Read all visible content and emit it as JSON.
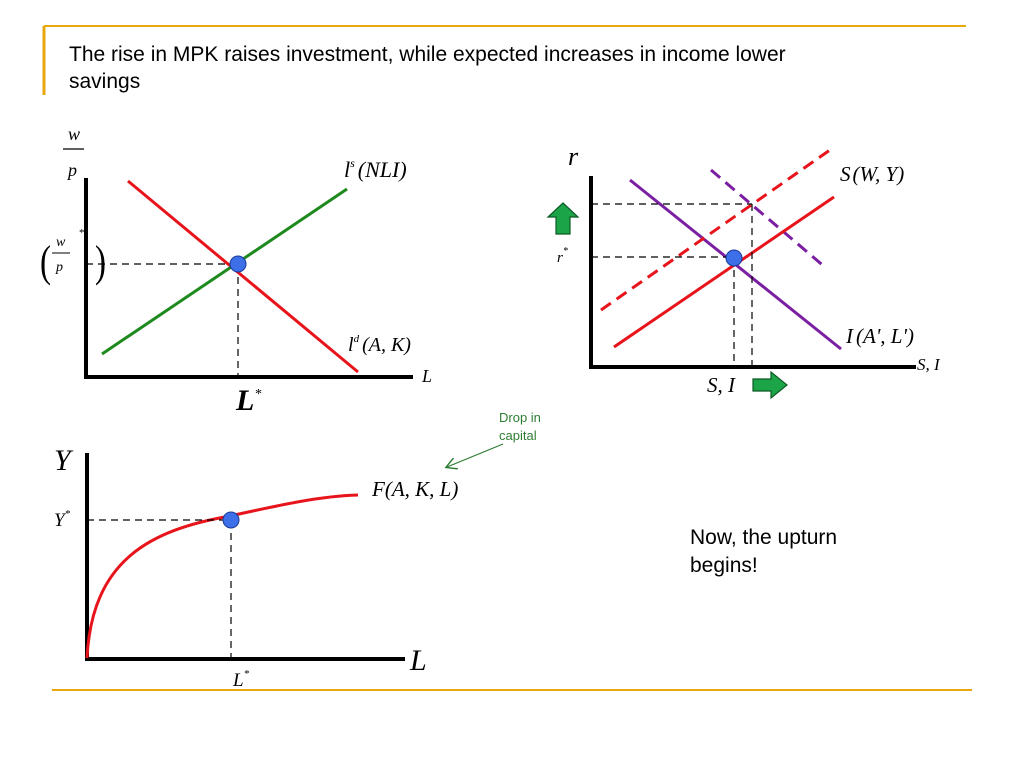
{
  "slide": {
    "title": "The rise in MPK raises investment, while expected increases in income lower savings",
    "note": "Now, the upturn begins!",
    "accent_color": "#E8A80C"
  },
  "labor_market": {
    "y_label_num": "w",
    "y_label_den": "p",
    "x_label": "L",
    "supply_label": "l",
    "supply_sup": "s",
    "supply_args": "(NLI)",
    "demand_label": "l",
    "demand_sup": "d",
    "demand_args": "(A, K)",
    "eq_wage_num": "w",
    "eq_wage_den": "p",
    "eq_star": "*",
    "eq_labor": "L",
    "supply_color": "#1E8A1E",
    "demand_color": "#E8141B",
    "point_color": "#3C6FE8"
  },
  "capital_market": {
    "y_label": "r",
    "x_label": "S, I",
    "saving_label": "S",
    "saving_args": "(W, Y)",
    "investment_label": "I",
    "investment_args": "(A', L')",
    "eq_rate": "r",
    "eq_star": "*",
    "eq_quantity": "S, I",
    "saving_color": "#E8141B",
    "investment_color": "#7B1FA2",
    "arrow_color": "#1BA548"
  },
  "production": {
    "y_label": "Y",
    "x_label": "L",
    "function_label": "F(A, K, L)",
    "eq_output": "Y",
    "eq_labor": "L",
    "eq_star": "*",
    "annotation": [
      "Drop in",
      "capital"
    ],
    "curve_color": "#E8141B"
  },
  "icons": [
    "up-arrow-icon",
    "right-arrow-icon",
    "annotation-arrow-icon"
  ]
}
